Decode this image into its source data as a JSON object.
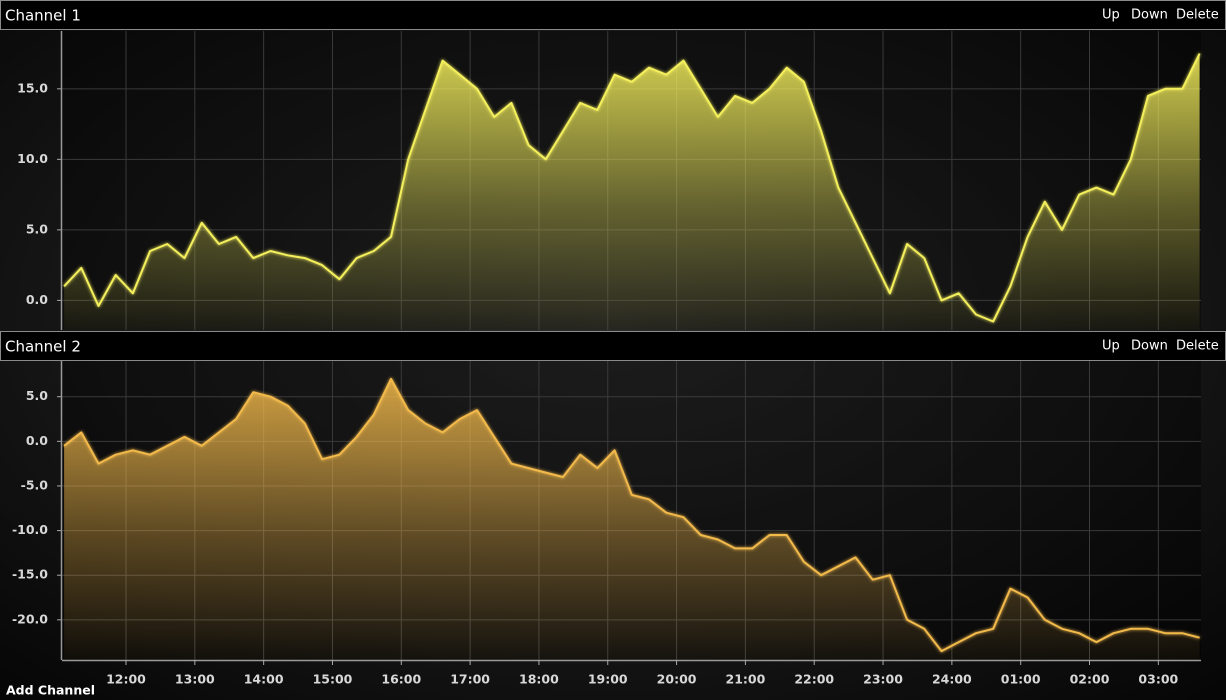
{
  "chart_data": [
    {
      "type": "area",
      "title": "Channel 1",
      "buttons": [
        "Up",
        "Down",
        "Delete"
      ],
      "color": "#f4ef5c",
      "grid": true,
      "xlim": [
        11.07,
        27.62
      ],
      "ylim": [
        -2.1,
        19.1
      ],
      "yticks": [
        {
          "value": 0,
          "label": "0.0"
        },
        {
          "value": 5,
          "label": "5.0"
        },
        {
          "value": 10,
          "label": "10.0"
        },
        {
          "value": 15,
          "label": "15.0"
        }
      ],
      "x": [
        11.1,
        11.35,
        11.6,
        11.85,
        12.1,
        12.35,
        12.6,
        12.85,
        13.1,
        13.35,
        13.6,
        13.85,
        14.1,
        14.35,
        14.6,
        14.85,
        15.1,
        15.35,
        15.6,
        15.85,
        16.1,
        16.35,
        16.6,
        16.85,
        17.1,
        17.35,
        17.6,
        17.85,
        18.1,
        18.35,
        18.6,
        18.85,
        19.1,
        19.35,
        19.6,
        19.85,
        20.1,
        20.35,
        20.6,
        20.85,
        21.1,
        21.35,
        21.6,
        21.85,
        22.1,
        22.35,
        22.6,
        22.85,
        23.1,
        23.35,
        23.6,
        23.85,
        24.1,
        24.35,
        24.6,
        24.85,
        25.1,
        25.35,
        25.6,
        25.85,
        26.1,
        26.35,
        26.6,
        26.85,
        27.1,
        27.35,
        27.6
      ],
      "values": [
        1.0,
        2.3,
        -0.4,
        1.8,
        0.5,
        3.5,
        4.0,
        3.0,
        5.5,
        4.0,
        4.5,
        3.0,
        3.5,
        3.2,
        3.0,
        2.5,
        1.5,
        3.0,
        3.5,
        4.5,
        10.0,
        13.5,
        17.0,
        16.0,
        15.0,
        13.0,
        14.0,
        11.0,
        10.0,
        12.0,
        14.0,
        13.5,
        16.0,
        15.5,
        16.5,
        16.0,
        17.0,
        15.0,
        13.0,
        14.5,
        14.0,
        15.0,
        16.5,
        15.5,
        12.0,
        8.0,
        5.5,
        3.0,
        0.5,
        4.0,
        3.0,
        0.0,
        0.5,
        -1.0,
        -1.5,
        1.0,
        4.5,
        7.0,
        5.0,
        7.5,
        8.0,
        7.5,
        10.0,
        14.5,
        15.0,
        15.0,
        17.5
      ]
    },
    {
      "type": "area",
      "title": "Channel 2",
      "buttons": [
        "Up",
        "Down",
        "Delete"
      ],
      "color": "#f2b94b",
      "grid": true,
      "xlim": [
        11.07,
        27.62
      ],
      "ylim": [
        -24.5,
        9.0
      ],
      "xticks": [
        {
          "value": 12,
          "label": "12:00"
        },
        {
          "value": 13,
          "label": "13:00"
        },
        {
          "value": 14,
          "label": "14:00"
        },
        {
          "value": 15,
          "label": "15:00"
        },
        {
          "value": 16,
          "label": "16:00"
        },
        {
          "value": 17,
          "label": "17:00"
        },
        {
          "value": 18,
          "label": "18:00"
        },
        {
          "value": 19,
          "label": "19:00"
        },
        {
          "value": 20,
          "label": "20:00"
        },
        {
          "value": 21,
          "label": "21:00"
        },
        {
          "value": 22,
          "label": "22:00"
        },
        {
          "value": 23,
          "label": "23:00"
        },
        {
          "value": 24,
          "label": "24:00"
        },
        {
          "value": 25,
          "label": "01:00"
        },
        {
          "value": 26,
          "label": "02:00"
        },
        {
          "value": 27,
          "label": "03:00"
        }
      ],
      "yticks": [
        {
          "value": -20,
          "label": "-20.0"
        },
        {
          "value": -15,
          "label": "-15.0"
        },
        {
          "value": -10,
          "label": "-10.0"
        },
        {
          "value": -5,
          "label": "-5.0"
        },
        {
          "value": 0,
          "label": "0.0"
        },
        {
          "value": 5,
          "label": "5.0"
        }
      ],
      "x": [
        11.1,
        11.35,
        11.6,
        11.85,
        12.1,
        12.35,
        12.6,
        12.85,
        13.1,
        13.35,
        13.6,
        13.85,
        14.1,
        14.35,
        14.6,
        14.85,
        15.1,
        15.35,
        15.6,
        15.85,
        16.1,
        16.35,
        16.6,
        16.85,
        17.1,
        17.35,
        17.6,
        17.85,
        18.1,
        18.35,
        18.6,
        18.85,
        19.1,
        19.35,
        19.6,
        19.85,
        20.1,
        20.35,
        20.6,
        20.85,
        21.1,
        21.35,
        21.6,
        21.85,
        22.1,
        22.35,
        22.6,
        22.85,
        23.1,
        23.35,
        23.6,
        23.85,
        24.1,
        24.35,
        24.6,
        24.85,
        25.1,
        25.35,
        25.6,
        25.85,
        26.1,
        26.35,
        26.6,
        26.85,
        27.1,
        27.35,
        27.6
      ],
      "values": [
        -0.5,
        1.0,
        -2.5,
        -1.5,
        -1.0,
        -1.5,
        -0.5,
        0.5,
        -0.5,
        1.0,
        2.5,
        5.5,
        5.0,
        4.0,
        2.0,
        -2.0,
        -1.5,
        0.5,
        3.0,
        7.0,
        3.5,
        2.0,
        1.0,
        2.5,
        3.5,
        0.5,
        -2.5,
        -3.0,
        -3.5,
        -4.0,
        -1.5,
        -3.0,
        -1.0,
        -6.0,
        -6.5,
        -8.0,
        -8.5,
        -10.5,
        -11.0,
        -12.0,
        -12.0,
        -10.5,
        -10.5,
        -13.5,
        -15.0,
        -14.0,
        -13.0,
        -15.5,
        -15.0,
        -20.0,
        -21.0,
        -23.5,
        -22.5,
        -21.5,
        -21.0,
        -16.5,
        -17.5,
        -20.0,
        -21.0,
        -21.5,
        -22.5,
        -21.5,
        -21.0,
        -21.0,
        -21.5,
        -21.5,
        -22.0
      ]
    }
  ],
  "add_channel": "Add Channel"
}
